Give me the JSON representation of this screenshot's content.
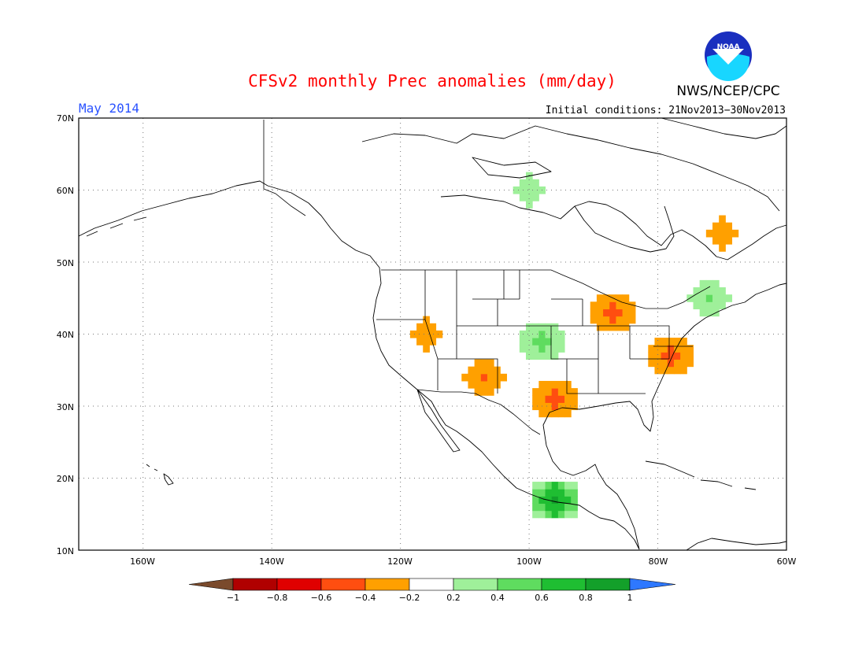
{
  "header": {
    "title": "CFSv2 monthly Prec anomalies (mm/day)",
    "month": "May 2014",
    "initial_conditions": "Initial conditions: 21Nov2013−30Nov2013",
    "org": "NWS/NCEP/CPC",
    "logo_text": "NOAA"
  },
  "axes": {
    "lat_labels": [
      "70N",
      "60N",
      "50N",
      "40N",
      "30N",
      "20N",
      "10N"
    ],
    "lon_labels": [
      "160W",
      "140W",
      "120W",
      "100W",
      "80W",
      "60W"
    ],
    "lon_range": [
      -170,
      -60
    ],
    "lat_range": [
      10,
      70
    ]
  },
  "colorbar": {
    "tick_labels": [
      "−1",
      "−0.8",
      "−0.6",
      "−0.4",
      "−0.2",
      "0.2",
      "0.4",
      "0.6",
      "0.8",
      "1"
    ],
    "colors": [
      "#7a4a2c",
      "#b00000",
      "#e00000",
      "#ff4e10",
      "#ffa000",
      "#ffffff",
      "#9ff09a",
      "#5fdc5f",
      "#1fbe32",
      "#13a02a",
      "#2e78ff"
    ]
  },
  "map": {
    "region": "North America",
    "anomaly_areas": [
      {
        "lon": -116,
        "lat": 40,
        "value": -0.3
      },
      {
        "lon": -107,
        "lat": 34,
        "value": -0.4
      },
      {
        "lon": -96,
        "lat": 31,
        "value": -0.5
      },
      {
        "lon": -87,
        "lat": 43,
        "value": -0.5
      },
      {
        "lon": -78,
        "lat": 37,
        "value": -0.5
      },
      {
        "lon": -70,
        "lat": 54,
        "value": -0.3
      },
      {
        "lon": -100,
        "lat": 60,
        "value": 0.3
      },
      {
        "lon": -98,
        "lat": 39,
        "value": 0.5
      },
      {
        "lon": -96,
        "lat": 17,
        "value": 0.9
      },
      {
        "lon": -72,
        "lat": 45,
        "value": 0.4
      }
    ]
  }
}
